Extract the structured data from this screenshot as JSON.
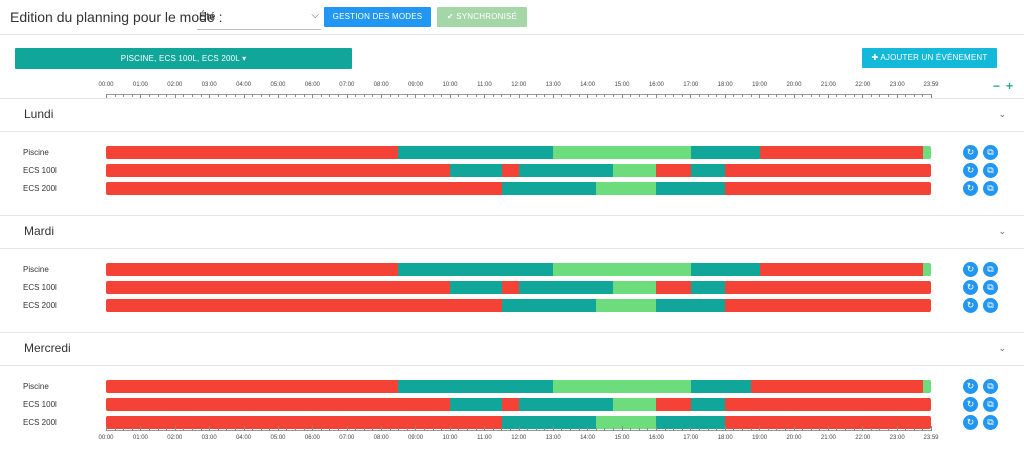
{
  "header": {
    "mode_label": "Edition du planning pour le mode :",
    "mode_value": "Été",
    "modes_button": "GESTION DES MODES",
    "sync_button": "SYNCHRONISÉ",
    "sync_check_icon": "check-icon"
  },
  "toolbar": {
    "group_button": "PISCINE, ECS 100L, ECS 200L",
    "add_button": "AJOUTER UN ÉVÉNEMENT",
    "zoom_out": "−",
    "zoom_in": "+"
  },
  "axis_labels": [
    "00:00",
    "01:00",
    "02:00",
    "03:00",
    "04:00",
    "05:00",
    "06:00",
    "07:00",
    "08:00",
    "09:00",
    "10:00",
    "11:00",
    "12:00",
    "13:00",
    "14:00",
    "15:00",
    "16:00",
    "17:00",
    "18:00",
    "19:00",
    "20:00",
    "21:00",
    "22:00",
    "23:00",
    "23:59"
  ],
  "colors": {
    "red": "#f44336",
    "teal": "#10a699",
    "green": "#6ddc7c"
  },
  "days": [
    {
      "name": "Lundi",
      "rows": [
        {
          "label": "Piscine",
          "segments": [
            {
              "start": "00:00",
              "end": "08:30",
              "color": "red"
            },
            {
              "start": "08:30",
              "end": "13:00",
              "color": "teal"
            },
            {
              "start": "13:00",
              "end": "17:00",
              "color": "green"
            },
            {
              "start": "17:00",
              "end": "19:00",
              "color": "teal"
            },
            {
              "start": "19:00",
              "end": "23:45",
              "color": "red"
            },
            {
              "start": "23:45",
              "end": "23:59",
              "color": "green"
            }
          ]
        },
        {
          "label": "ECS 100l",
          "segments": [
            {
              "start": "00:00",
              "end": "10:00",
              "color": "red"
            },
            {
              "start": "10:00",
              "end": "11:30",
              "color": "teal"
            },
            {
              "start": "11:30",
              "end": "12:00",
              "color": "red"
            },
            {
              "start": "12:00",
              "end": "14:45",
              "color": "teal"
            },
            {
              "start": "14:45",
              "end": "16:00",
              "color": "green"
            },
            {
              "start": "16:00",
              "end": "17:00",
              "color": "red"
            },
            {
              "start": "17:00",
              "end": "18:00",
              "color": "teal"
            },
            {
              "start": "18:00",
              "end": "23:59",
              "color": "red"
            }
          ]
        },
        {
          "label": "ECS 200l",
          "segments": [
            {
              "start": "00:00",
              "end": "11:30",
              "color": "red"
            },
            {
              "start": "11:30",
              "end": "14:15",
              "color": "teal"
            },
            {
              "start": "14:15",
              "end": "16:00",
              "color": "green"
            },
            {
              "start": "16:00",
              "end": "18:00",
              "color": "teal"
            },
            {
              "start": "18:00",
              "end": "23:59",
              "color": "red"
            }
          ]
        }
      ]
    },
    {
      "name": "Mardi",
      "rows": [
        {
          "label": "Piscine",
          "segments": [
            {
              "start": "00:00",
              "end": "08:30",
              "color": "red"
            },
            {
              "start": "08:30",
              "end": "13:00",
              "color": "teal"
            },
            {
              "start": "13:00",
              "end": "17:00",
              "color": "green"
            },
            {
              "start": "17:00",
              "end": "19:00",
              "color": "teal"
            },
            {
              "start": "19:00",
              "end": "23:45",
              "color": "red"
            },
            {
              "start": "23:45",
              "end": "23:59",
              "color": "green"
            }
          ]
        },
        {
          "label": "ECS 100l",
          "segments": [
            {
              "start": "00:00",
              "end": "10:00",
              "color": "red"
            },
            {
              "start": "10:00",
              "end": "11:30",
              "color": "teal"
            },
            {
              "start": "11:30",
              "end": "12:00",
              "color": "red"
            },
            {
              "start": "12:00",
              "end": "14:45",
              "color": "teal"
            },
            {
              "start": "14:45",
              "end": "16:00",
              "color": "green"
            },
            {
              "start": "16:00",
              "end": "17:00",
              "color": "red"
            },
            {
              "start": "17:00",
              "end": "18:00",
              "color": "teal"
            },
            {
              "start": "18:00",
              "end": "23:59",
              "color": "red"
            }
          ]
        },
        {
          "label": "ECS 200l",
          "segments": [
            {
              "start": "00:00",
              "end": "11:30",
              "color": "red"
            },
            {
              "start": "11:30",
              "end": "14:15",
              "color": "teal"
            },
            {
              "start": "14:15",
              "end": "16:00",
              "color": "green"
            },
            {
              "start": "16:00",
              "end": "18:00",
              "color": "teal"
            },
            {
              "start": "18:00",
              "end": "23:59",
              "color": "red"
            }
          ]
        }
      ]
    },
    {
      "name": "Mercredi",
      "rows": [
        {
          "label": "Piscine",
          "segments": [
            {
              "start": "00:00",
              "end": "08:30",
              "color": "red"
            },
            {
              "start": "08:30",
              "end": "13:00",
              "color": "teal"
            },
            {
              "start": "13:00",
              "end": "17:00",
              "color": "green"
            },
            {
              "start": "17:00",
              "end": "18:45",
              "color": "teal"
            },
            {
              "start": "18:45",
              "end": "23:45",
              "color": "red"
            },
            {
              "start": "23:45",
              "end": "23:59",
              "color": "green"
            }
          ]
        },
        {
          "label": "ECS 100l",
          "segments": [
            {
              "start": "00:00",
              "end": "10:00",
              "color": "red"
            },
            {
              "start": "10:00",
              "end": "11:30",
              "color": "teal"
            },
            {
              "start": "11:30",
              "end": "12:00",
              "color": "red"
            },
            {
              "start": "12:00",
              "end": "14:45",
              "color": "teal"
            },
            {
              "start": "14:45",
              "end": "16:00",
              "color": "green"
            },
            {
              "start": "16:00",
              "end": "17:00",
              "color": "red"
            },
            {
              "start": "17:00",
              "end": "18:00",
              "color": "teal"
            },
            {
              "start": "18:00",
              "end": "23:59",
              "color": "red"
            }
          ]
        },
        {
          "label": "ECS 200l",
          "segments": [
            {
              "start": "00:00",
              "end": "11:30",
              "color": "red"
            },
            {
              "start": "11:30",
              "end": "14:15",
              "color": "teal"
            },
            {
              "start": "14:15",
              "end": "16:00",
              "color": "green"
            },
            {
              "start": "16:00",
              "end": "18:00",
              "color": "teal"
            },
            {
              "start": "18:00",
              "end": "23:59",
              "color": "red"
            }
          ]
        }
      ]
    }
  ]
}
